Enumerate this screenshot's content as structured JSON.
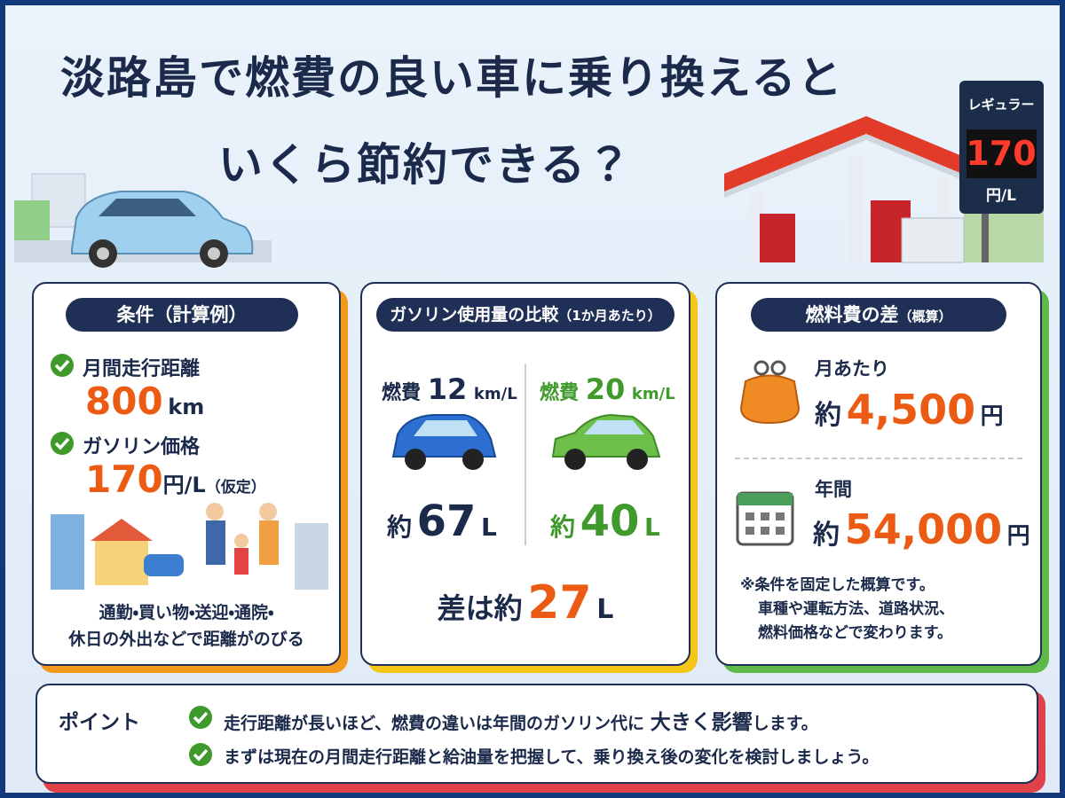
{
  "header": {
    "title_lines": [
      "淡路島で燃費の良い車に乗り換えると",
      "いくら節約できる？"
    ]
  },
  "price_sign": {
    "label": "レギュラー",
    "price": "170",
    "unit": "円/L"
  },
  "conditions": {
    "heading": "条件",
    "heading_note": "（計算例）",
    "items": [
      {
        "label": "月間走行距離",
        "value": "800",
        "unit": "km"
      },
      {
        "label": "ガソリン価格",
        "value": "170",
        "unit": "円/L",
        "note": "（仮定）"
      }
    ],
    "caption_lines": [
      "通勤・買い物・送迎・通院・",
      "休日の外出などで距離がのびる"
    ]
  },
  "comparison": {
    "heading": "ガソリン使用量の比較",
    "heading_note": "（1か月あたり）",
    "cars": [
      {
        "label": "燃費",
        "efficiency": "12",
        "efficiency_unit": "km/L",
        "prefix": "約",
        "amount": "67",
        "amount_unit": "L"
      },
      {
        "label": "燃費",
        "efficiency": "20",
        "efficiency_unit": "km/L",
        "prefix": "約",
        "amount": "40",
        "amount_unit": "L"
      }
    ],
    "difference": {
      "label": "差は約",
      "amount": "27",
      "unit": "L"
    }
  },
  "cost": {
    "heading": "燃料費の差",
    "heading_note": "（概算）",
    "monthly": {
      "label": "月あたり",
      "prefix": "約",
      "amount": "4,500",
      "unit": "円"
    },
    "yearly": {
      "label": "年間",
      "prefix": "約",
      "amount": "54,000",
      "unit": "円"
    },
    "note_lines": [
      "※条件を固定した概算です。",
      "車種や運転方法、道路状況、",
      "燃料価格などで変わります。"
    ]
  },
  "points": {
    "label": "ポイント",
    "items": [
      {
        "before": "走行距離が長いほど、燃費の違いは年間のガソリン代に",
        "emphasis": "大きく影響",
        "after": "します。"
      },
      {
        "text": "まずは現在の月間走行距離と給油量を把握して、乗り換え後の変化を検討しましょう。"
      }
    ]
  }
}
